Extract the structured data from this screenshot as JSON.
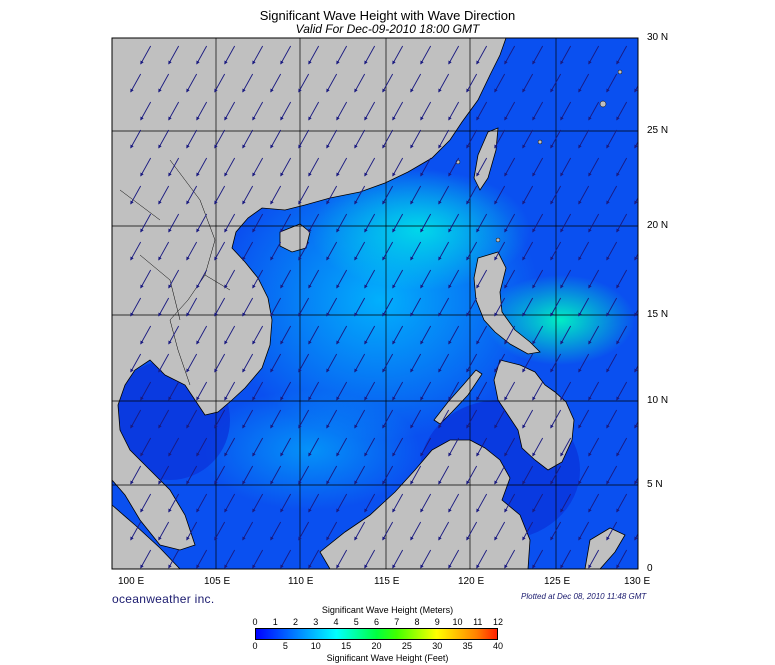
{
  "title": "Significant Wave Height with Wave Direction",
  "subtitle": "Valid For Dec-09-2010 18:00 GMT",
  "map": {
    "latitude_labels": [
      "30 N",
      "25 N",
      "20 N",
      "15 N",
      "10 N",
      "5 N",
      "0"
    ],
    "longitude_labels": [
      "100 E",
      "105 E",
      "110 E",
      "115 E",
      "120 E",
      "125 E",
      "130 E"
    ],
    "land_color": "#c0c0c0",
    "ocean_low_color": "#0000e6",
    "ocean_high_color": "#00ffc8",
    "wave_direction": "north-east monsoon, arrows pointing south-west"
  },
  "branding": {
    "logo_text": "oceanweather inc.",
    "plotted_text": "Plotted at Dec 08, 2010 11:48 GMT"
  },
  "legend": {
    "meters_title": "Significant Wave Height (Meters)",
    "meters_ticks": [
      "0",
      "1",
      "2",
      "3",
      "4",
      "5",
      "6",
      "7",
      "8",
      "9",
      "10",
      "11",
      "12"
    ],
    "feet_ticks": [
      "0",
      "5",
      "10",
      "15",
      "20",
      "25",
      "30",
      "35",
      "40"
    ],
    "feet_title": "Significant Wave Height (Feet)",
    "colors": [
      "#0000ff",
      "#0040ff",
      "#0080ff",
      "#00c0ff",
      "#00ffff",
      "#00ffa0",
      "#00ff40",
      "#40ff00",
      "#a0ff00",
      "#ffff00",
      "#ffc000",
      "#ff8000",
      "#ff2000"
    ]
  }
}
